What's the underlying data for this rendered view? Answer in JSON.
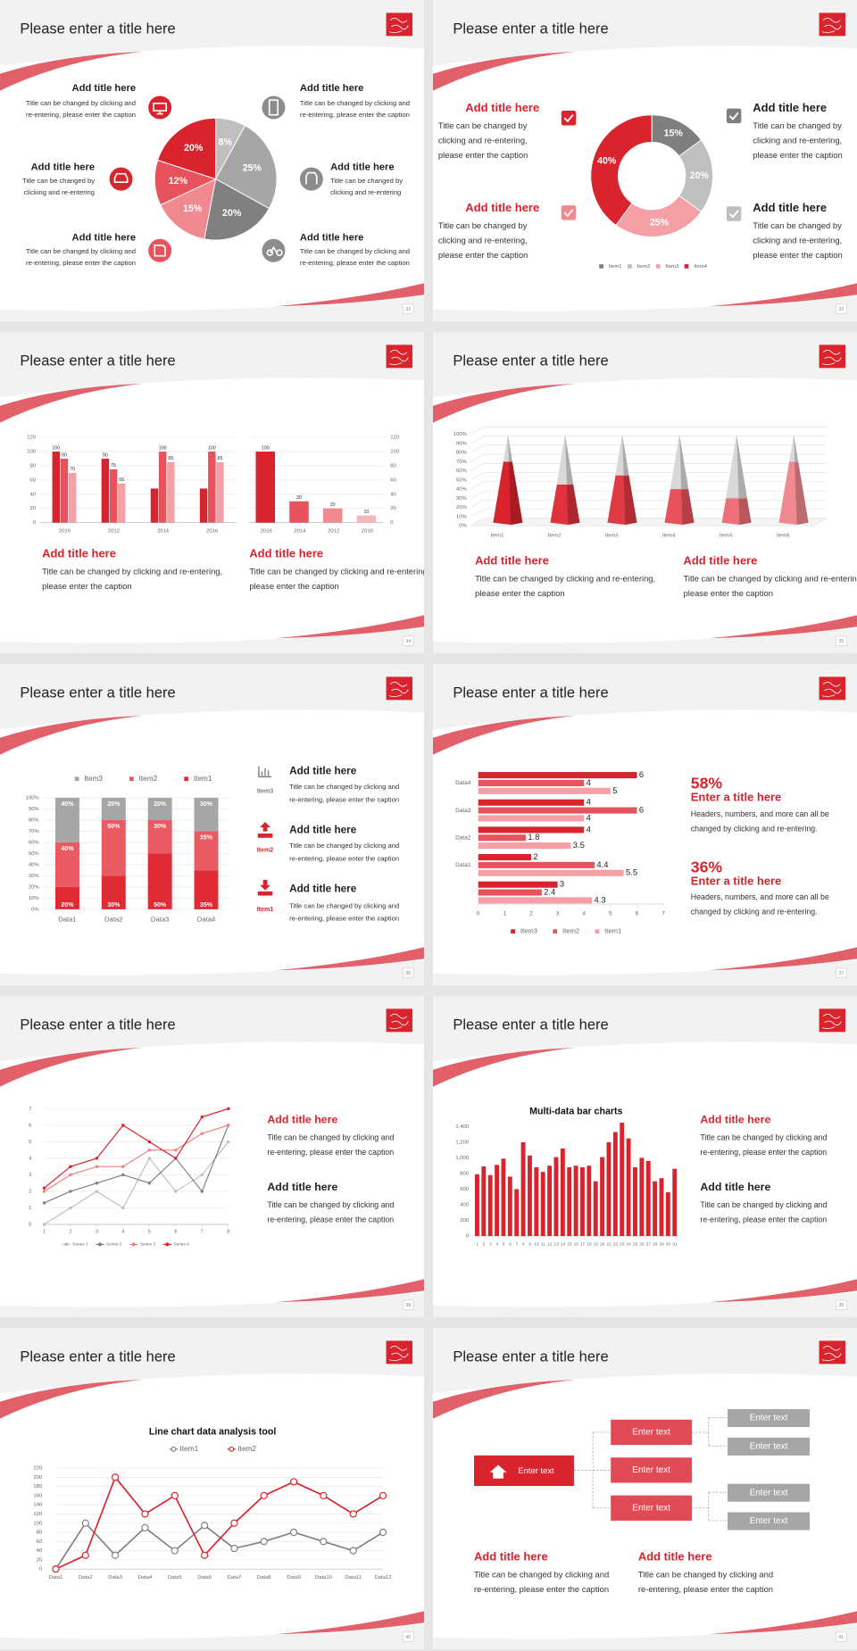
{
  "slides": [
    {
      "title": "Please enter a title here",
      "page": 32,
      "blocks": [
        {
          "title": "Add title here",
          "caption": [
            "Title can be changed by clicking and",
            "re-entering, please enter the caption"
          ]
        },
        {
          "title": "Add title here",
          "caption": [
            "Title can be changed by",
            "clicking and re-entering"
          ]
        },
        {
          "title": "Add title here",
          "caption": [
            "Title can be changed by clicking and",
            "re-entering, please enter the caption"
          ]
        },
        {
          "title": "Add title here",
          "caption": [
            "Title can be changed by clicking and",
            "re-entering, please enter the caption"
          ]
        },
        {
          "title": "Add title here",
          "caption": [
            "Title can be changed by",
            "clicking and re-entering"
          ]
        },
        {
          "title": "Add title here",
          "caption": [
            "Title can be changed by clicking and",
            "re-entering, please enter the caption"
          ]
        }
      ]
    },
    {
      "title": "Please enter a title here",
      "page": 33,
      "blocks": [
        {
          "title": "Add title here",
          "caption": [
            "Title can be changed by",
            "clicking and re-entering,",
            "please enter the caption"
          ]
        },
        {
          "title": "Add title here",
          "caption": [
            "Title can be changed by",
            "clicking and re-entering,",
            "please enter the caption"
          ]
        },
        {
          "title": "Add title here",
          "caption": [
            "Title can be changed by",
            "clicking and re-entering,",
            "please enter the caption"
          ]
        },
        {
          "title": "Add title here",
          "caption": [
            "Title can be changed by",
            "clicking and re-entering,",
            "please enter the caption"
          ]
        }
      ]
    },
    {
      "title": "Please enter a title here",
      "page": 34,
      "blocks": [
        {
          "title": "Add title here",
          "caption": [
            "Title can be changed by clicking and re-entering,",
            "please enter the caption"
          ]
        },
        {
          "title": "Add title here",
          "caption": [
            "Title can be changed by clicking and re-entering,",
            "please enter the caption"
          ]
        }
      ]
    },
    {
      "title": "Please enter a title here",
      "page": 35,
      "blocks": [
        {
          "title": "Add title here",
          "caption": [
            "Title can be changed by clicking and re-entering,",
            "please enter the caption"
          ]
        },
        {
          "title": "Add title here",
          "caption": [
            "Title can be changed by clicking and re-entering,",
            "please enter the caption"
          ]
        }
      ]
    },
    {
      "title": "Please enter a title here",
      "page": 36,
      "blocks": [
        {
          "label": "Item3",
          "title": "Add title here",
          "caption": [
            "Title can be changed by clicking and",
            "re-entering, please enter the caption"
          ]
        },
        {
          "label": "Item2",
          "title": "Add title here",
          "caption": [
            "Title can be changed by clicking and",
            "re-entering, please enter the caption"
          ]
        },
        {
          "label": "Item1",
          "title": "Add title here",
          "caption": [
            "Title can be changed by clicking and",
            "re-entering, please enter the caption"
          ]
        }
      ]
    },
    {
      "title": "Please enter a title here",
      "page": 37,
      "blocks": [
        {
          "stat": "58%",
          "title": "Enter a title here",
          "caption": [
            "Headers, numbers, and more can all be",
            "changed by clicking and re-entering."
          ]
        },
        {
          "stat": "36%",
          "title": "Enter a title here",
          "caption": [
            "Headers, numbers, and more can all be",
            "changed by clicking and re-entering."
          ]
        }
      ]
    },
    {
      "title": "Please enter a title here",
      "page": 38,
      "blocks": [
        {
          "title": "Add title here",
          "caption": [
            "Title can be changed by clicking and",
            "re-entering, please enter the caption"
          ]
        },
        {
          "title": "Add title here",
          "caption": [
            "Title can be changed by clicking and",
            "re-entering, please enter the caption"
          ]
        }
      ]
    },
    {
      "title": "Please enter a title here",
      "page": 39,
      "blocks": [
        {
          "title": "Add title here",
          "caption": [
            "Title can be changed by clicking and",
            "re-entering, please enter the caption"
          ]
        },
        {
          "title": "Add title here",
          "caption": [
            "Title can be changed by clicking and",
            "re-entering, please enter the caption"
          ]
        }
      ]
    },
    {
      "title": "Please enter a title here",
      "page": 40,
      "blocks": []
    },
    {
      "title": "Please enter a title here",
      "page": 41,
      "blocks": [
        {
          "title": "Add title here",
          "caption": [
            "Title can be changed by clicking and",
            "re-entering, please enter the caption"
          ]
        },
        {
          "title": "Add title here",
          "caption": [
            "Title can be changed by clicking and",
            "re-entering, please enter the caption"
          ]
        }
      ],
      "diagram": {
        "root": "Enter text",
        "branches": [
          "Enter text",
          "Enter text",
          "Enter text"
        ],
        "leaves": [
          "Enter text",
          "Enter text",
          "Enter text",
          "Enter text"
        ]
      }
    }
  ],
  "chart_data": [
    {
      "type": "pie",
      "values": [
        8,
        25,
        20,
        15,
        12,
        20
      ],
      "value_labels": [
        "8%",
        "25%",
        "20%",
        "15%",
        "12%",
        "20%"
      ],
      "colors": [
        "#bfbfbf",
        "#a6a6a6",
        "#808080",
        "#f08a90",
        "#e8525c",
        "#d9232d"
      ]
    },
    {
      "type": "pie",
      "hole": true,
      "categories": [
        "Item1",
        "Item2",
        "Item3",
        "Item4"
      ],
      "values": [
        15,
        20,
        25,
        40
      ],
      "value_labels": [
        "15%",
        "20%",
        "25%",
        "40%"
      ],
      "colors": [
        "#7f7f7f",
        "#bfbfbf",
        "#f4a0a6",
        "#d9232d"
      ]
    },
    {
      "type": "bar",
      "categories": [
        "2019",
        "2012",
        "2014",
        "2016"
      ],
      "data_labels": true,
      "grid": true,
      "ylim": [
        0,
        120
      ],
      "yticks": [
        0,
        20,
        40,
        60,
        80,
        100,
        120
      ],
      "series": [
        {
          "color": "#d9232d",
          "values": [
            100,
            90,
            48,
            48
          ],
          "value_labels": [
            "100",
            "90",
            null,
            null
          ]
        },
        {
          "color": "#e8525c",
          "values": [
            90,
            75,
            100,
            100
          ]
        },
        {
          "color": "#f4a0a6",
          "values": [
            70,
            55,
            85,
            85
          ]
        }
      ]
    },
    {
      "type": "bar",
      "categories": [
        "2016",
        "2014",
        "2012",
        "2019"
      ],
      "values": [
        100,
        30,
        20,
        10
      ],
      "colors": [
        "#d9232d",
        "#e8525c",
        "#f08a90",
        "#f4b6ba"
      ],
      "data_labels": true,
      "grid": true,
      "ylim": [
        0,
        120
      ],
      "yticks": [
        0,
        20,
        40,
        60,
        80,
        100,
        120
      ]
    },
    {
      "type": "cone",
      "categories": [
        "Item1",
        "Item2",
        "Item3",
        "Item4",
        "Item5",
        "Item6"
      ],
      "values": [
        70,
        45,
        55,
        40,
        30,
        70
      ],
      "colors": [
        "#d9232d",
        "#e0313c",
        "#e03a44",
        "#e8525c",
        "#ee6f77",
        "#f08a90"
      ],
      "grid": true,
      "ylim": [
        0,
        100
      ],
      "yticks": [
        {
          "value": 0,
          "label": "0%"
        },
        {
          "value": 10,
          "label": "10%"
        },
        {
          "value": 20,
          "label": "20%"
        },
        {
          "value": 30,
          "label": "30%"
        },
        {
          "value": 40,
          "label": "40%"
        },
        {
          "value": 50,
          "label": "50%"
        },
        {
          "value": 60,
          "label": "60%"
        },
        {
          "value": 70,
          "label": "70%"
        },
        {
          "value": 80,
          "label": "80%"
        },
        {
          "value": 90,
          "label": "90%"
        },
        {
          "value": 100,
          "label": "100%"
        }
      ]
    },
    {
      "type": "stacked_bar",
      "categories": [
        "Data1",
        "Data2",
        "Data3",
        "Data4"
      ],
      "grid": true,
      "ylim": [
        0,
        100
      ],
      "yticks": [
        {
          "value": 0,
          "label": "0%"
        },
        {
          "value": 10,
          "label": "10%"
        },
        {
          "value": 20,
          "label": "20%"
        },
        {
          "value": 30,
          "label": "30%"
        },
        {
          "value": 40,
          "label": "40%"
        },
        {
          "value": 50,
          "label": "50%"
        },
        {
          "value": 60,
          "label": "60%"
        },
        {
          "value": 70,
          "label": "70%"
        },
        {
          "value": 80,
          "label": "80%"
        },
        {
          "value": 90,
          "label": "90%"
        },
        {
          "value": 100,
          "label": "100%"
        }
      ],
      "series": [
        {
          "name": "Item1",
          "color": "#e02a34",
          "values": [
            20,
            30,
            50,
            35
          ],
          "value_labels": [
            "20%",
            "30%",
            "50%",
            "35%"
          ]
        },
        {
          "name": "Item2",
          "color": "#ea5a62",
          "values": [
            40,
            50,
            30,
            35
          ],
          "value_labels": [
            "40%",
            "50%",
            "30%",
            "35%"
          ]
        },
        {
          "name": "Item3",
          "color": "#a6a6a6",
          "values": [
            40,
            20,
            20,
            30
          ],
          "value_labels": [
            "40%",
            "20%",
            "20%",
            "30%"
          ]
        }
      ]
    },
    {
      "type": "barh",
      "categories": [
        null,
        "Data1",
        "Data2",
        "Data3",
        "Data4"
      ],
      "data_labels": true,
      "xlim": [
        0,
        7
      ],
      "xticks": [
        0,
        1,
        2,
        3,
        4,
        5,
        6,
        7
      ],
      "series": [
        {
          "name": "Item3",
          "color": "#d9232d",
          "values": [
            3,
            2,
            4,
            4,
            6
          ]
        },
        {
          "name": "Item2",
          "color": "#e8525c",
          "values": [
            2.4,
            4.4,
            1.8,
            6,
            4
          ]
        },
        {
          "name": "Item1",
          "color": "#f4a0a6",
          "values": [
            4.3,
            5.5,
            3.5,
            4,
            5
          ]
        }
      ]
    },
    {
      "type": "line",
      "markers": "filled",
      "grid": true,
      "x": [
        1,
        2,
        3,
        4,
        5,
        6,
        7,
        8
      ],
      "xlim": [
        1,
        8
      ],
      "xticks": [
        1,
        2,
        3,
        4,
        5,
        6,
        7,
        8
      ],
      "ylim": [
        0,
        7
      ],
      "yticks": [
        0,
        1,
        2,
        3,
        4,
        5,
        6,
        7
      ],
      "series": [
        {
          "name": "Series 1",
          "color": "#bfbfbf",
          "values": [
            0,
            1,
            2,
            1,
            4,
            2,
            3,
            5
          ]
        },
        {
          "name": "Series 2",
          "color": "#808080",
          "values": [
            1.3,
            2,
            2.5,
            3,
            2.5,
            4,
            2,
            6
          ]
        },
        {
          "name": "Series 3",
          "color": "#f08080",
          "values": [
            2,
            3,
            3.5,
            3.5,
            4.5,
            4.5,
            5.5,
            6
          ]
        },
        {
          "name": "Series 4",
          "color": "#d9232d",
          "values": [
            2.2,
            3.5,
            4,
            6,
            5,
            4,
            6.5,
            7
          ]
        }
      ]
    },
    {
      "type": "bar",
      "title": "Multi-data bar charts",
      "categories": [
        "1",
        "2",
        "3",
        "4",
        "5",
        "6",
        "7",
        "8",
        "9",
        "10",
        "11",
        "12",
        "13",
        "14",
        "15",
        "16",
        "17",
        "18",
        "19",
        "20",
        "21",
        "22",
        "23",
        "24",
        "25",
        "26",
        "27",
        "28",
        "29",
        "30",
        "31"
      ],
      "values": [
        790,
        890,
        780,
        910,
        990,
        760,
        600,
        1200,
        1030,
        880,
        820,
        900,
        1010,
        1120,
        880,
        900,
        880,
        900,
        700,
        1010,
        1200,
        1330,
        1450,
        1250,
        880,
        1000,
        960,
        700,
        740,
        560,
        860
      ],
      "color": "#d9232d",
      "ylim": [
        0,
        1400
      ],
      "yticks": [
        0,
        200,
        400,
        600,
        800,
        {
          "value": 1000,
          "label": "1,000"
        },
        {
          "value": 1200,
          "label": "1,200"
        },
        {
          "value": 1400,
          "label": "1,400"
        }
      ]
    },
    {
      "type": "line",
      "title": "Line chart data analysis tool",
      "markers": "hollow",
      "grid": true,
      "categories": [
        "Data1",
        "Data2",
        "Data3",
        "Data4",
        "Data5",
        "Data6",
        "Data7",
        "Data8",
        "Data9",
        "Data10",
        "Data11",
        "Data12"
      ],
      "ylim": [
        0,
        220
      ],
      "yticks": [
        0,
        20,
        40,
        60,
        80,
        100,
        120,
        140,
        160,
        180,
        200,
        220
      ],
      "series": [
        {
          "name": "Item1",
          "color": "#7f7f7f",
          "values": [
            0,
            100,
            30,
            90,
            40,
            95,
            45,
            60,
            80,
            60,
            40,
            80
          ]
        },
        {
          "name": "Item2",
          "color": "#d9232d",
          "values": [
            0,
            30,
            200,
            120,
            160,
            30,
            100,
            160,
            190,
            160,
            120,
            160
          ]
        }
      ]
    }
  ]
}
